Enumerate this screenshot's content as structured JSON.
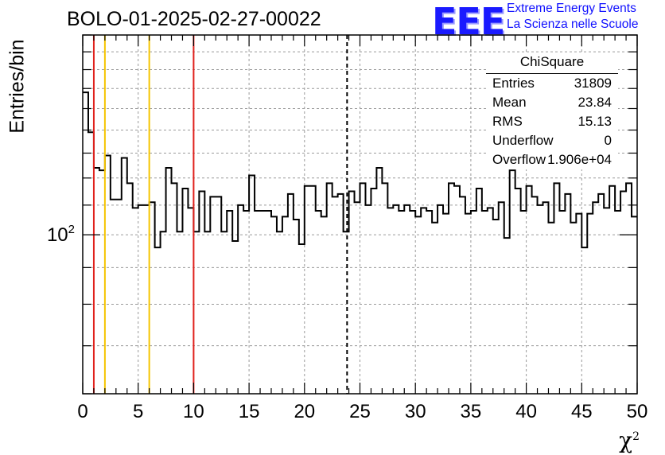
{
  "header": {
    "title": "BOLO-01-2025-02-27-00022",
    "logo_text": "EEE",
    "logo_line1": "Extreme Energy Events",
    "logo_line2": "La Scienza nelle Scuole"
  },
  "stats_box": {
    "title": "ChiSquare",
    "rows": [
      {
        "label": "Entries",
        "value": "31809"
      },
      {
        "label": "Mean",
        "value": "23.84"
      },
      {
        "label": "RMS",
        "value": "15.13"
      },
      {
        "label": "Underflow",
        "value": "0"
      },
      {
        "label": "Overflow",
        "value": "1.906e+04"
      }
    ]
  },
  "chart_data": {
    "type": "histogram",
    "title": "BOLO-01-2025-02-27-00022",
    "xlabel": "χ",
    "xlabel_sup": "2",
    "ylabel": "Entries/bin",
    "xlim": [
      0,
      50
    ],
    "ylim": [
      60,
      190
    ],
    "yscale": "log",
    "grid": true,
    "bin_width": 0.5,
    "x_ticks": [
      "0",
      "5",
      "10",
      "15",
      "20",
      "25",
      "30",
      "35",
      "40",
      "45",
      "50"
    ],
    "y_tick_label": "10",
    "y_tick_label_sup": "2",
    "values": [
      158,
      139,
      124,
      123,
      129,
      112,
      112,
      128,
      118,
      109,
      110,
      110,
      111,
      96,
      101,
      124,
      118,
      101,
      116,
      109,
      101,
      115,
      101,
      113,
      113,
      101,
      108,
      98,
      110,
      108,
      121,
      108,
      108,
      108,
      106,
      101,
      106,
      114,
      105,
      97,
      117,
      117,
      108,
      106,
      118,
      113,
      114,
      101,
      115,
      111,
      118,
      110,
      116,
      124,
      118,
      109,
      110,
      108,
      110,
      108,
      106,
      109,
      108,
      104,
      110,
      107,
      118,
      117,
      113,
      107,
      108,
      116,
      108,
      109,
      105,
      111,
      99,
      123,
      116,
      108,
      117,
      113,
      110,
      111,
      104,
      118,
      108,
      114,
      104,
      107,
      96,
      107,
      111,
      114,
      109,
      117,
      108,
      115,
      118,
      106
    ],
    "vertical_lines": [
      {
        "x": 1,
        "color": "#e0211c",
        "style": "solid"
      },
      {
        "x": 2,
        "color": "#f5c400",
        "style": "solid"
      },
      {
        "x": 6,
        "color": "#f5c400",
        "style": "solid"
      },
      {
        "x": 10,
        "color": "#e0211c",
        "style": "solid"
      },
      {
        "x": 23.84,
        "color": "#000000",
        "style": "dashed"
      }
    ],
    "colors": {
      "histogram": "#000000",
      "grid": "#9a9a9a",
      "frame": "#000000"
    }
  }
}
